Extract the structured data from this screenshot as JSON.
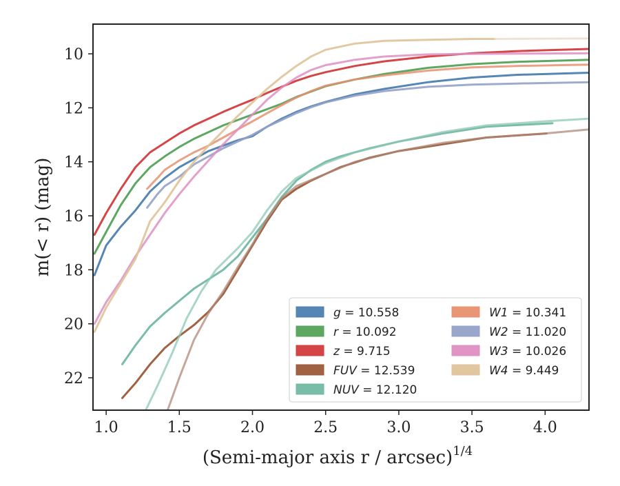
{
  "chart_data": {
    "type": "line",
    "xlabel": "(Semi-major axis r / arcsec)",
    "xlabel_sup": "1/4",
    "ylabel": "m(< r) (mag)",
    "xlim": [
      0.91,
      4.3
    ],
    "ylim": [
      23.2,
      8.9
    ],
    "y_inverted": true,
    "grid": false,
    "legend_position": "lower-right",
    "x_ticks": [
      "1.0",
      "1.5",
      "2.0",
      "2.5",
      "3.0",
      "3.5",
      "4.0"
    ],
    "y_ticks": [
      "10",
      "12",
      "14",
      "16",
      "18",
      "20",
      "22"
    ],
    "series": [
      {
        "name": "g",
        "label_text": "g = 10.558",
        "color": "#4c7fb0",
        "opacity": 0.95,
        "points": [
          [
            0.92,
            18.2
          ],
          [
            1.0,
            17.1
          ],
          [
            1.1,
            16.4
          ],
          [
            1.2,
            15.8
          ],
          [
            1.3,
            15.1
          ],
          [
            1.4,
            14.6
          ],
          [
            1.5,
            14.2
          ],
          [
            1.6,
            13.9
          ],
          [
            1.7,
            13.6
          ],
          [
            1.8,
            13.4
          ],
          [
            1.9,
            13.2
          ],
          [
            2.0,
            13.05
          ],
          [
            2.1,
            12.7
          ],
          [
            2.2,
            12.4
          ],
          [
            2.3,
            12.15
          ],
          [
            2.4,
            11.95
          ],
          [
            2.5,
            11.78
          ],
          [
            2.7,
            11.5
          ],
          [
            2.9,
            11.3
          ],
          [
            3.2,
            11.05
          ],
          [
            3.5,
            10.88
          ],
          [
            3.8,
            10.78
          ],
          [
            4.3,
            10.7
          ]
        ]
      },
      {
        "name": "r",
        "label_text": "r = 10.092",
        "color": "#55a25a",
        "opacity": 0.95,
        "points": [
          [
            0.92,
            17.4
          ],
          [
            1.0,
            16.6
          ],
          [
            1.1,
            15.6
          ],
          [
            1.2,
            14.8
          ],
          [
            1.3,
            14.2
          ],
          [
            1.4,
            13.8
          ],
          [
            1.5,
            13.45
          ],
          [
            1.6,
            13.15
          ],
          [
            1.7,
            12.9
          ],
          [
            1.8,
            12.65
          ],
          [
            1.9,
            12.45
          ],
          [
            2.0,
            12.25
          ],
          [
            2.1,
            12.05
          ],
          [
            2.2,
            11.85
          ],
          [
            2.3,
            11.6
          ],
          [
            2.4,
            11.4
          ],
          [
            2.5,
            11.2
          ],
          [
            2.7,
            10.95
          ],
          [
            2.9,
            10.75
          ],
          [
            3.2,
            10.52
          ],
          [
            3.5,
            10.38
          ],
          [
            3.8,
            10.3
          ],
          [
            4.3,
            10.22
          ]
        ]
      },
      {
        "name": "z",
        "label_text": "z = 9.715",
        "color": "#d23b3e",
        "opacity": 0.95,
        "points": [
          [
            0.92,
            16.7
          ],
          [
            1.0,
            15.9
          ],
          [
            1.1,
            15.0
          ],
          [
            1.2,
            14.2
          ],
          [
            1.3,
            13.65
          ],
          [
            1.4,
            13.3
          ],
          [
            1.5,
            12.95
          ],
          [
            1.6,
            12.65
          ],
          [
            1.7,
            12.4
          ],
          [
            1.8,
            12.15
          ],
          [
            1.9,
            11.92
          ],
          [
            2.0,
            11.7
          ],
          [
            2.1,
            11.45
          ],
          [
            2.2,
            11.22
          ],
          [
            2.3,
            11.0
          ],
          [
            2.4,
            10.82
          ],
          [
            2.5,
            10.68
          ],
          [
            2.7,
            10.45
          ],
          [
            2.9,
            10.28
          ],
          [
            3.2,
            10.1
          ],
          [
            3.5,
            9.98
          ],
          [
            3.8,
            9.9
          ],
          [
            4.3,
            9.82
          ]
        ]
      },
      {
        "name": "FUV",
        "label_text": "FUV = 12.539",
        "color": "#9b5a38",
        "opacity": 0.95,
        "points": [
          [
            1.11,
            22.75
          ],
          [
            1.2,
            22.2
          ],
          [
            1.3,
            21.5
          ],
          [
            1.4,
            20.9
          ],
          [
            1.5,
            20.45
          ],
          [
            1.6,
            20.05
          ],
          [
            1.7,
            19.55
          ],
          [
            1.8,
            18.9
          ],
          [
            1.9,
            18.0
          ],
          [
            2.0,
            17.1
          ],
          [
            2.1,
            16.2
          ],
          [
            2.2,
            15.4
          ],
          [
            2.3,
            15.0
          ],
          [
            2.4,
            14.7
          ],
          [
            2.5,
            14.45
          ],
          [
            2.6,
            14.2
          ],
          [
            2.8,
            13.85
          ],
          [
            3.0,
            13.6
          ],
          [
            3.3,
            13.35
          ],
          [
            3.6,
            13.1
          ],
          [
            4.01,
            12.95
          ]
        ]
      },
      {
        "name": "NUV",
        "label_text": "NUV = 12.120",
        "color": "#72b8a2",
        "opacity": 0.95,
        "points": [
          [
            1.11,
            21.5
          ],
          [
            1.2,
            20.8
          ],
          [
            1.3,
            20.1
          ],
          [
            1.4,
            19.6
          ],
          [
            1.5,
            19.15
          ],
          [
            1.6,
            18.7
          ],
          [
            1.7,
            18.35
          ],
          [
            1.8,
            18.0
          ],
          [
            1.9,
            17.5
          ],
          [
            2.0,
            16.8
          ],
          [
            2.1,
            16.1
          ],
          [
            2.2,
            15.3
          ],
          [
            2.3,
            14.7
          ],
          [
            2.4,
            14.3
          ],
          [
            2.5,
            14.0
          ],
          [
            2.6,
            13.8
          ],
          [
            2.8,
            13.5
          ],
          [
            3.0,
            13.25
          ],
          [
            3.3,
            12.95
          ],
          [
            3.6,
            12.7
          ],
          [
            4.05,
            12.57
          ]
        ]
      },
      {
        "name": "W1",
        "label_text": "W1 = 10.341",
        "color": "#e89070",
        "opacity": 0.85,
        "points": [
          [
            1.28,
            15.0
          ],
          [
            1.35,
            14.6
          ],
          [
            1.4,
            14.3
          ],
          [
            1.5,
            13.95
          ],
          [
            1.6,
            13.65
          ],
          [
            1.7,
            13.4
          ],
          [
            1.8,
            13.1
          ],
          [
            1.9,
            12.8
          ],
          [
            2.0,
            12.5
          ],
          [
            2.1,
            12.2
          ],
          [
            2.2,
            11.9
          ],
          [
            2.3,
            11.62
          ],
          [
            2.4,
            11.38
          ],
          [
            2.5,
            11.18
          ],
          [
            2.7,
            10.95
          ],
          [
            2.9,
            10.8
          ],
          [
            3.2,
            10.62
          ],
          [
            3.5,
            10.5
          ],
          [
            3.8,
            10.45
          ],
          [
            4.3,
            10.4
          ]
        ]
      },
      {
        "name": "W2",
        "label_text": "W2 = 11.020",
        "color": "#93a2c8",
        "opacity": 0.9,
        "points": [
          [
            1.28,
            15.7
          ],
          [
            1.35,
            15.2
          ],
          [
            1.4,
            14.9
          ],
          [
            1.5,
            14.55
          ],
          [
            1.6,
            14.1
          ],
          [
            1.7,
            13.8
          ],
          [
            1.8,
            13.5
          ],
          [
            1.9,
            13.25
          ],
          [
            2.0,
            13.0
          ],
          [
            2.1,
            12.7
          ],
          [
            2.2,
            12.45
          ],
          [
            2.3,
            12.2
          ],
          [
            2.4,
            11.98
          ],
          [
            2.5,
            11.8
          ],
          [
            2.7,
            11.55
          ],
          [
            2.9,
            11.38
          ],
          [
            3.2,
            11.22
          ],
          [
            3.5,
            11.14
          ],
          [
            3.8,
            11.1
          ],
          [
            4.3,
            11.05
          ]
        ]
      },
      {
        "name": "W3",
        "label_text": "W3 = 10.026",
        "color": "#de8fc2",
        "opacity": 0.85,
        "points": [
          [
            0.92,
            20.0
          ],
          [
            1.0,
            19.2
          ],
          [
            1.1,
            18.4
          ],
          [
            1.2,
            17.5
          ],
          [
            1.3,
            16.7
          ],
          [
            1.4,
            15.9
          ],
          [
            1.5,
            15.2
          ],
          [
            1.6,
            14.55
          ],
          [
            1.7,
            13.95
          ],
          [
            1.8,
            13.35
          ],
          [
            1.9,
            12.8
          ],
          [
            2.0,
            12.25
          ],
          [
            2.1,
            11.7
          ],
          [
            2.2,
            11.25
          ],
          [
            2.3,
            10.88
          ],
          [
            2.4,
            10.6
          ],
          [
            2.5,
            10.42
          ],
          [
            2.7,
            10.22
          ],
          [
            2.9,
            10.1
          ],
          [
            3.2,
            10.02
          ],
          [
            3.5,
            10.0
          ],
          [
            4.3,
            9.98
          ]
        ]
      },
      {
        "name": "W4",
        "label_text": "W4 = 9.449",
        "color": "#dfc39a",
        "opacity": 0.9,
        "points": [
          [
            0.92,
            20.3
          ],
          [
            1.0,
            19.4
          ],
          [
            1.1,
            18.5
          ],
          [
            1.2,
            17.6
          ],
          [
            1.3,
            16.2
          ],
          [
            1.4,
            15.5
          ],
          [
            1.5,
            14.7
          ],
          [
            1.6,
            14.0
          ],
          [
            1.7,
            13.4
          ],
          [
            1.8,
            12.85
          ],
          [
            1.9,
            12.3
          ],
          [
            2.0,
            11.8
          ],
          [
            2.1,
            11.3
          ],
          [
            2.2,
            10.85
          ],
          [
            2.3,
            10.45
          ],
          [
            2.4,
            10.1
          ],
          [
            2.5,
            9.85
          ],
          [
            2.7,
            9.62
          ],
          [
            2.9,
            9.52
          ],
          [
            3.2,
            9.48
          ],
          [
            3.5,
            9.45
          ],
          [
            3.66,
            9.45
          ]
        ]
      },
      {
        "name": "W4",
        "label_text": "",
        "color": "#ece0cc",
        "opacity": 0.9,
        "points": [
          [
            3.66,
            9.45
          ],
          [
            4.0,
            9.44
          ],
          [
            4.3,
            9.43
          ]
        ]
      },
      {
        "name": "NUV",
        "label_text": "",
        "color": "#8cc8b3",
        "opacity": 0.75,
        "points": [
          [
            1.27,
            23.2
          ],
          [
            1.35,
            22.3
          ],
          [
            1.45,
            21.1
          ],
          [
            1.55,
            19.8
          ],
          [
            1.65,
            18.8
          ],
          [
            1.75,
            18.0
          ],
          [
            1.9,
            17.2
          ],
          [
            2.0,
            16.6
          ],
          [
            2.1,
            15.8
          ],
          [
            2.2,
            15.1
          ],
          [
            2.3,
            14.6
          ],
          [
            2.5,
            14.05
          ],
          [
            2.7,
            13.65
          ],
          [
            3.0,
            13.25
          ],
          [
            3.3,
            12.9
          ],
          [
            3.6,
            12.65
          ],
          [
            4.0,
            12.5
          ],
          [
            4.3,
            12.4
          ]
        ]
      },
      {
        "name": "FUV",
        "label_text": "",
        "color": "#b08a78",
        "opacity": 0.75,
        "points": [
          [
            1.42,
            23.2
          ],
          [
            1.5,
            22.0
          ],
          [
            1.6,
            20.6
          ],
          [
            1.7,
            19.6
          ],
          [
            1.8,
            18.8
          ],
          [
            1.9,
            17.9
          ],
          [
            2.0,
            17.05
          ],
          [
            2.1,
            16.1
          ],
          [
            2.2,
            15.35
          ],
          [
            2.3,
            14.9
          ],
          [
            2.5,
            14.45
          ],
          [
            2.7,
            14.0
          ],
          [
            3.0,
            13.6
          ],
          [
            3.3,
            13.3
          ],
          [
            3.6,
            13.1
          ],
          [
            4.0,
            12.95
          ],
          [
            4.3,
            12.8
          ]
        ]
      }
    ],
    "legend": {
      "columns": 2,
      "entries": [
        {
          "var": "g",
          "value": "10.558",
          "color": "#4c7fb0"
        },
        {
          "var": "r",
          "value": "10.092",
          "color": "#55a25a"
        },
        {
          "var": "z",
          "value": "9.715",
          "color": "#d23b3e"
        },
        {
          "var": "FUV",
          "value": "12.539",
          "color": "#9b5a38"
        },
        {
          "var": "NUV",
          "value": "12.120",
          "color": "#72b8a2"
        },
        {
          "var": "W1",
          "value": "10.341",
          "color": "#e89070"
        },
        {
          "var": "W2",
          "value": "11.020",
          "color": "#93a2c8"
        },
        {
          "var": "W3",
          "value": "10.026",
          "color": "#de8fc2"
        },
        {
          "var": "W4",
          "value": "9.449",
          "color": "#dfc39a"
        }
      ]
    }
  }
}
